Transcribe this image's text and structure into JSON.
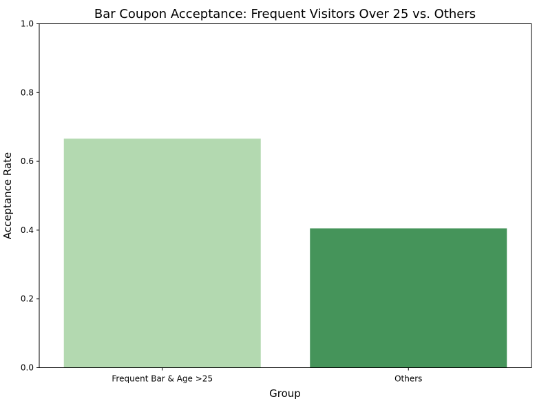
{
  "chart_data": {
    "type": "bar",
    "title": "Bar Coupon Acceptance: Frequent Visitors Over 25 vs. Others",
    "xlabel": "Group",
    "ylabel": "Acceptance Rate",
    "categories": [
      "Frequent Bar & Age >25",
      "Others"
    ],
    "values": [
      0.666,
      0.405
    ],
    "colors": [
      "#b3d9b0",
      "#45945a"
    ],
    "ylim": [
      0,
      1.0
    ],
    "yticks": [
      "0.0",
      "0.2",
      "0.4",
      "0.6",
      "0.8",
      "1.0"
    ],
    "grid": false,
    "legend": "none"
  }
}
